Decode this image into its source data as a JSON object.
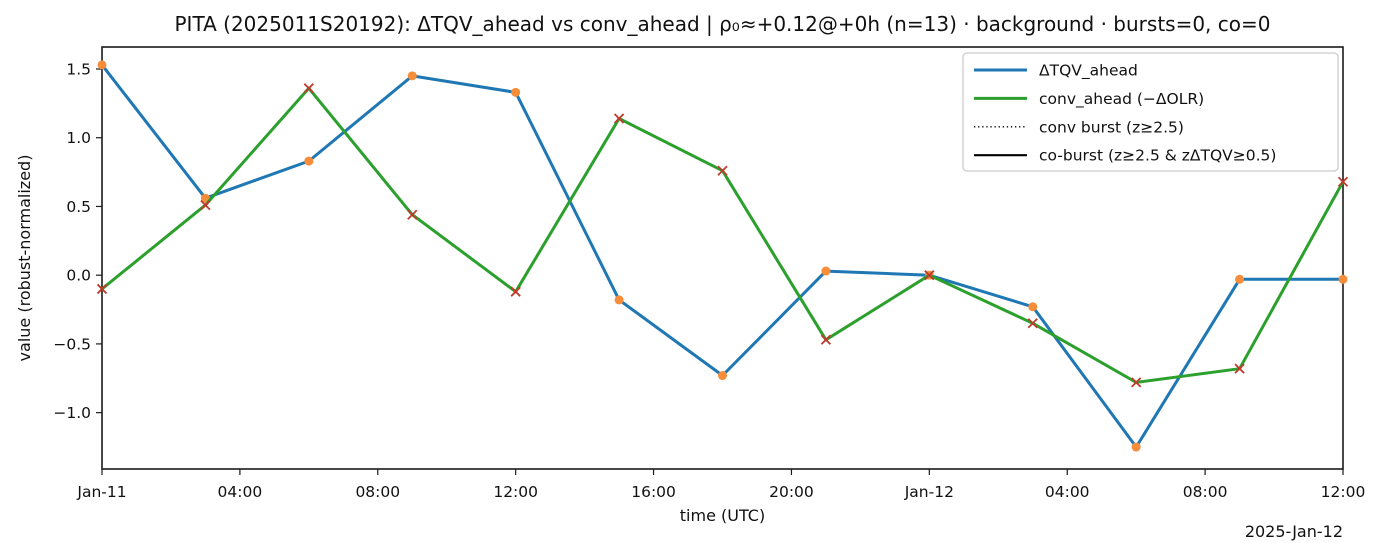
{
  "chart_data": {
    "type": "line",
    "title": "PITA (2025011S20192): ΔTQV_ahead vs conv_ahead | ρ₀≈+0.12@+0h (n=13) · background · bursts=0, co=0",
    "xlabel": "time (UTC)",
    "ylabel": "value (robust-normalized)",
    "x_offset_label": "2025-Jan-12",
    "n_points": 13,
    "x_hours": [
      0,
      3,
      6,
      9,
      12,
      15,
      18,
      21,
      24,
      27,
      30,
      33,
      36
    ],
    "x_times": [
      "2025-01-11 00:00",
      "03:00",
      "06:00",
      "09:00",
      "12:00",
      "15:00",
      "18:00",
      "21:00",
      "2025-01-12 00:00",
      "03:00",
      "06:00",
      "09:00",
      "12:00"
    ],
    "series": [
      {
        "name": "ΔTQV_ahead",
        "color": "#1f77b4",
        "line_style": "solid",
        "marker": "circle",
        "marker_color": "#f68d3a",
        "values": [
          1.53,
          0.56,
          0.83,
          1.45,
          1.33,
          -0.18,
          -0.73,
          0.03,
          0.0,
          -0.23,
          -1.25,
          -0.03,
          -0.03
        ]
      },
      {
        "name": "conv_ahead (−ΔOLR)",
        "color": "#2ca02c",
        "line_style": "solid",
        "marker": "x",
        "marker_color": "#c0392b",
        "values": [
          -0.1,
          0.51,
          1.36,
          0.44,
          -0.12,
          1.14,
          0.76,
          -0.47,
          0.0,
          -0.35,
          -0.78,
          -0.68,
          0.68
        ]
      }
    ],
    "legend": {
      "position": "upper right",
      "items": [
        {
          "label": "ΔTQV_ahead",
          "style": "solid",
          "color": "#1f77b4",
          "width": 3
        },
        {
          "label": "conv_ahead (−ΔOLR)",
          "style": "solid",
          "color": "#2ca02c",
          "width": 3
        },
        {
          "label": "conv burst (z≥2.5)",
          "style": "dotted",
          "color": "#000000",
          "width": 1.4
        },
        {
          "label": "co-burst (z≥2.5 & zΔTQV≥0.5)",
          "style": "solid",
          "color": "#000000",
          "width": 2.2
        }
      ]
    },
    "x_ticks": {
      "hours": [
        0,
        4,
        8,
        12,
        16,
        20,
        24,
        28,
        32,
        36
      ],
      "labels": [
        "Jan-11",
        "04:00",
        "08:00",
        "12:00",
        "16:00",
        "20:00",
        "Jan-12",
        "04:00",
        "08:00",
        "12:00"
      ]
    },
    "y_ticks": {
      "values": [
        1.5,
        1.0,
        0.5,
        0.0,
        -0.5,
        -1.0
      ],
      "labels": [
        "1.5",
        "1.0",
        "0.5",
        "0.0",
        "−0.5",
        "−1.0"
      ]
    },
    "xlim_hours": [
      0,
      36
    ],
    "ylim": [
      -1.41,
      1.66
    ],
    "grid": false,
    "bursts_count": 0,
    "co_bursts_count": 0,
    "colors": {
      "spine": "#1a1a1a",
      "text": "#111111",
      "legend_border": "#cccccc",
      "background": "#ffffff"
    }
  }
}
